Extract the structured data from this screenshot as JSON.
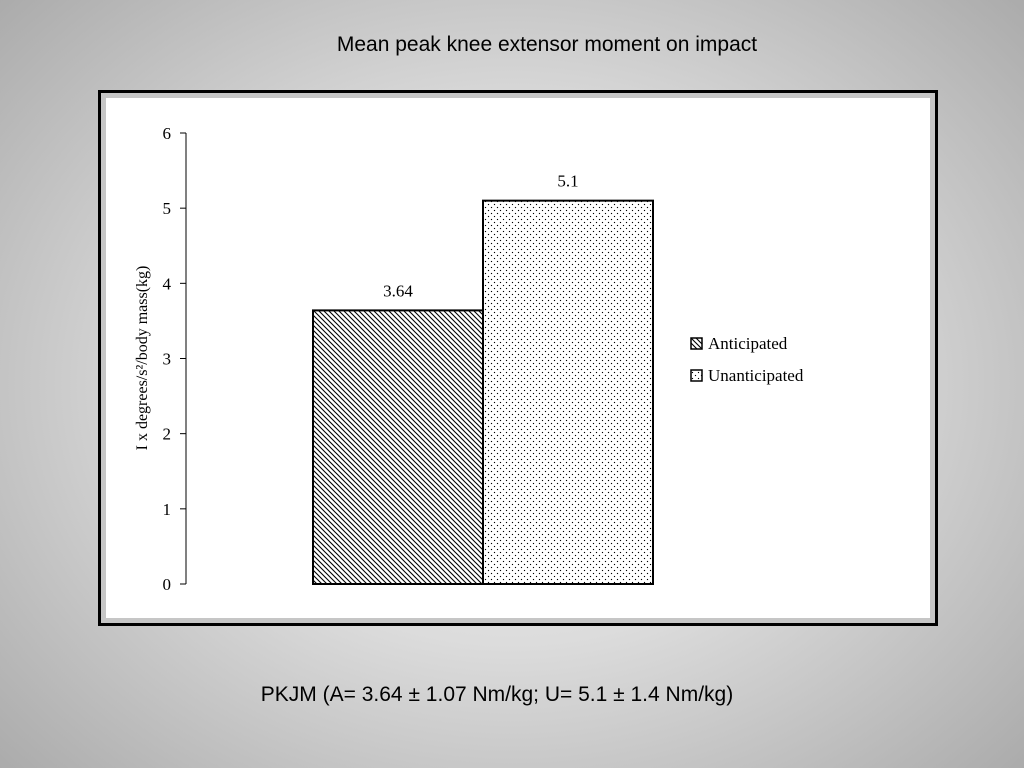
{
  "slide": {
    "title": "Mean peak knee extensor moment on impact",
    "footer": "PKJM (A= 3.64 ± 1.07 Nm/kg; U= 5.1 ± 1.4 Nm/kg)"
  },
  "chart_data": {
    "type": "bar",
    "title": "Mean peak knee extensor moment on impact",
    "xlabel": "",
    "ylabel": "I x degrees/s²/body mass(kg)",
    "ylim": [
      0,
      6
    ],
    "yticks": [
      0,
      1,
      2,
      3,
      4,
      5,
      6
    ],
    "grid": false,
    "legend_position": "right",
    "categories": [
      ""
    ],
    "series": [
      {
        "name": "Anticipated",
        "values": [
          3.64
        ],
        "data_label": "3.64",
        "pattern": "diagonal-hatch"
      },
      {
        "name": "Unanticipated",
        "values": [
          5.1
        ],
        "data_label": "5.1",
        "pattern": "dots"
      }
    ]
  }
}
